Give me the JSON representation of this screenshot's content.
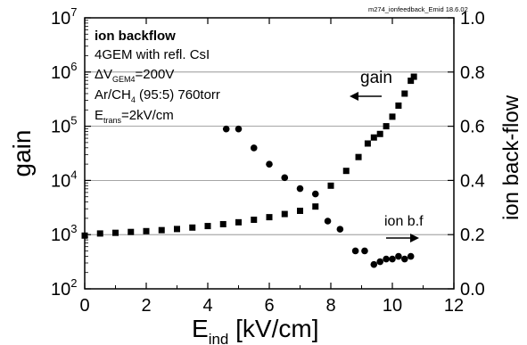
{
  "chart_data": {
    "type": "scatter",
    "file_tag": "m274_ionfeedback_Emid  18.6.02",
    "xlabel_main": "E",
    "xlabel_sub": "ind",
    "xlabel_unit": " [kV/cm]",
    "ylabel_left": "gain",
    "ylabel_right": "ion back-flow",
    "xlim": [
      0,
      12
    ],
    "ylim_left": [
      100,
      10000000
    ],
    "y_left_scale": "log",
    "ylim_right": [
      0.0,
      1.0
    ],
    "x_ticks": [
      "0",
      "2",
      "4",
      "6",
      "8",
      "10",
      "12"
    ],
    "y_left_ticks": [
      {
        "base": "10",
        "exp": "2"
      },
      {
        "base": "10",
        "exp": "3"
      },
      {
        "base": "10",
        "exp": "4"
      },
      {
        "base": "10",
        "exp": "5"
      },
      {
        "base": "10",
        "exp": "6"
      },
      {
        "base": "10",
        "exp": "7"
      }
    ],
    "y_right_ticks": [
      "0.0",
      "0.2",
      "0.4",
      "0.6",
      "0.8",
      "1.0"
    ],
    "grid": "horizontal",
    "info_box": {
      "title": "ion backflow",
      "line1": "4GEM with refl. CsI",
      "line2_prefix": "ΔV",
      "line2_sub": "GEM4",
      "line2_suffix": "=200V",
      "line3_prefix": "Ar/CH",
      "line3_sub": "4",
      "line3_suffix": " (95:5) 760torr",
      "line4_prefix": "E",
      "line4_sub": "trans",
      "line4_suffix": "=2kV/cm"
    },
    "annotations": {
      "gain_label": "gain",
      "ion_label": "ion b.f"
    },
    "series": [
      {
        "axis": "left",
        "marker": "square",
        "points": [
          [
            0,
            960
          ],
          [
            0.5,
            1050
          ],
          [
            1.0,
            1080
          ],
          [
            1.5,
            1120
          ],
          [
            2.0,
            1160
          ],
          [
            2.5,
            1210
          ],
          [
            3.0,
            1270
          ],
          [
            3.5,
            1350
          ],
          [
            4.0,
            1440
          ],
          [
            4.5,
            1560
          ],
          [
            5.0,
            1690
          ],
          [
            5.5,
            1880
          ],
          [
            6.0,
            2100
          ],
          [
            6.5,
            2400
          ],
          [
            7.0,
            2750
          ],
          [
            7.5,
            3300
          ],
          [
            8.0,
            8000
          ],
          [
            8.5,
            15000
          ],
          [
            8.9,
            27000
          ],
          [
            9.2,
            48000
          ],
          [
            9.4,
            62000
          ],
          [
            9.6,
            72000
          ],
          [
            9.8,
            100000
          ],
          [
            10.0,
            150000
          ],
          [
            10.2,
            240000
          ],
          [
            10.4,
            400000
          ],
          [
            10.6,
            690000
          ],
          [
            10.7,
            820000
          ]
        ]
      },
      {
        "axis": "right",
        "marker": "circle",
        "points": [
          [
            4.6,
            0.59
          ],
          [
            5.0,
            0.59
          ],
          [
            5.5,
            0.52
          ],
          [
            6.0,
            0.46
          ],
          [
            6.5,
            0.41
          ],
          [
            7.0,
            0.37
          ],
          [
            7.5,
            0.35
          ],
          [
            7.9,
            0.25
          ],
          [
            8.3,
            0.22
          ],
          [
            8.8,
            0.14
          ],
          [
            9.1,
            0.14
          ],
          [
            9.4,
            0.09
          ],
          [
            9.6,
            0.1
          ],
          [
            9.8,
            0.11
          ],
          [
            10.0,
            0.11
          ],
          [
            10.2,
            0.12
          ],
          [
            10.4,
            0.11
          ],
          [
            10.6,
            0.12
          ]
        ]
      }
    ]
  }
}
